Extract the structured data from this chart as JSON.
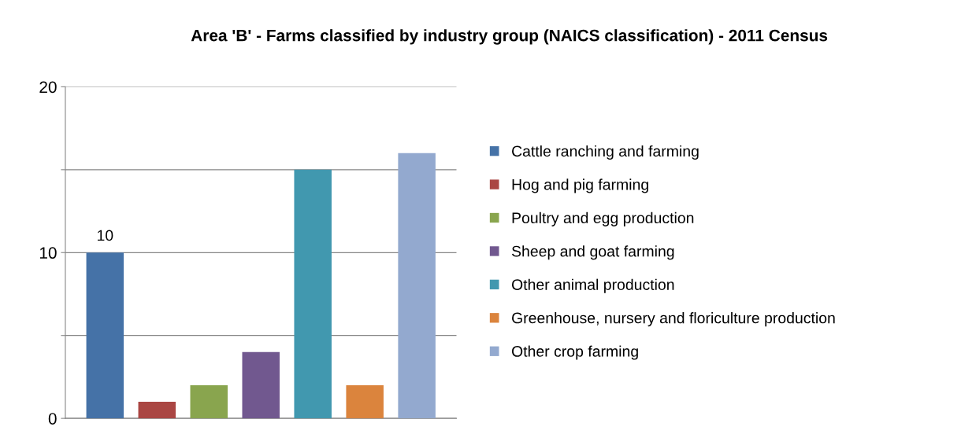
{
  "chart_data": {
    "type": "bar",
    "title": "Area 'B' - Farms classified by industry group (NAICS classification) - 2011 Census",
    "categories": [
      null
    ],
    "series": [
      {
        "name": "Cattle ranching and farming",
        "color": "#4572a7",
        "values": [
          10
        ],
        "value_labels": [
          "10"
        ]
      },
      {
        "name": "Hog and pig farming",
        "color": "#aa4643",
        "values": [
          1
        ]
      },
      {
        "name": "Poultry and egg production",
        "color": "#89a54e",
        "values": [
          2
        ]
      },
      {
        "name": "Sheep and goat farming",
        "color": "#71588f",
        "values": [
          4
        ]
      },
      {
        "name": "Other animal production",
        "color": "#4198af",
        "values": [
          15
        ]
      },
      {
        "name": "Greenhouse, nursery and floriculture production",
        "color": "#db843d",
        "values": [
          2
        ]
      },
      {
        "name": "Other crop farming",
        "color": "#93a9cf",
        "values": [
          16
        ]
      }
    ],
    "ylim": [
      0,
      20
    ],
    "yticks": [
      0,
      {
        "value": 5,
        "label": null
      },
      10,
      {
        "value": 15,
        "label": null
      },
      20
    ],
    "grid": "y",
    "legend": "right",
    "tick_labels": "y"
  }
}
